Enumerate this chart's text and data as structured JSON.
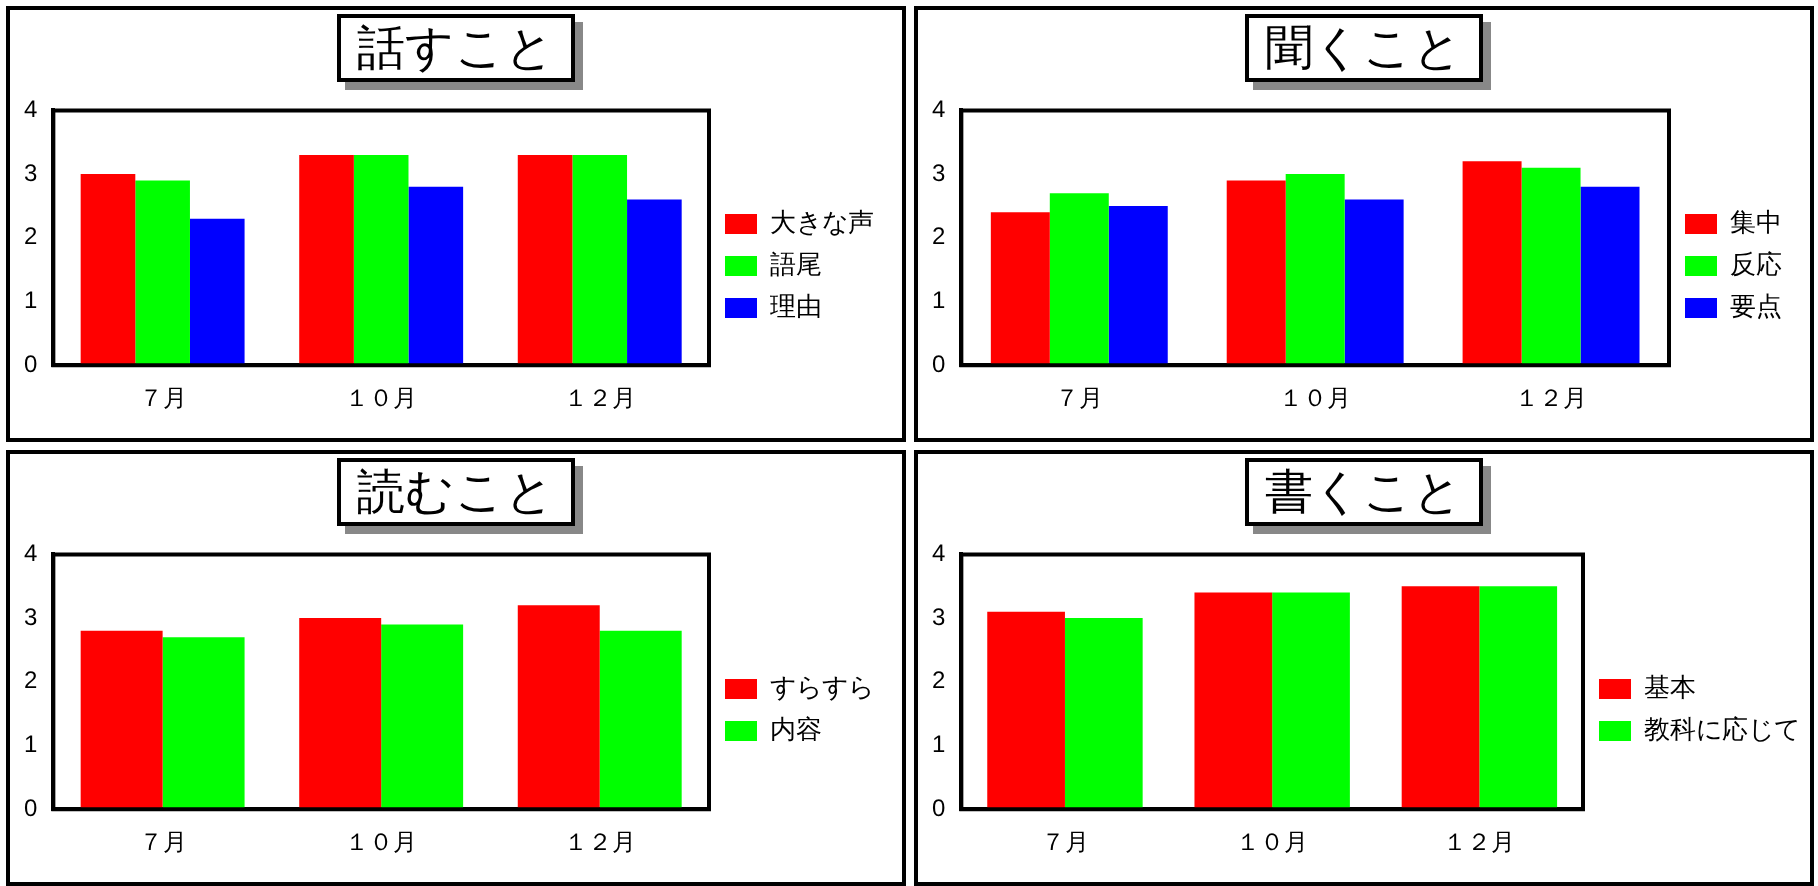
{
  "chart_data": [
    {
      "type": "bar",
      "title": "話すこと",
      "categories": [
        "７月",
        "１０月",
        "１２月"
      ],
      "ylim": [
        0,
        4
      ],
      "yticks": [
        0,
        1,
        2,
        3,
        4
      ],
      "grid": false,
      "legend": "right",
      "series": [
        {
          "name": "大きな声",
          "color": "#ff0000",
          "values": [
            3.0,
            3.3,
            3.3
          ]
        },
        {
          "name": "語尾",
          "color": "#00ff00",
          "values": [
            2.9,
            3.3,
            3.3
          ]
        },
        {
          "name": "理由",
          "color": "#0000ff",
          "values": [
            2.3,
            2.8,
            2.6
          ]
        }
      ]
    },
    {
      "type": "bar",
      "title": "聞くこと",
      "categories": [
        "７月",
        "１０月",
        "１２月"
      ],
      "ylim": [
        0,
        4
      ],
      "yticks": [
        0,
        1,
        2,
        3,
        4
      ],
      "grid": false,
      "legend": "right",
      "series": [
        {
          "name": "集中",
          "color": "#ff0000",
          "values": [
            2.4,
            2.9,
            3.2
          ]
        },
        {
          "name": "反応",
          "color": "#00ff00",
          "values": [
            2.7,
            3.0,
            3.1
          ]
        },
        {
          "name": "要点",
          "color": "#0000ff",
          "values": [
            2.5,
            2.6,
            2.8
          ]
        }
      ]
    },
    {
      "type": "bar",
      "title": "読むこと",
      "categories": [
        "７月",
        "１０月",
        "１２月"
      ],
      "ylim": [
        0,
        4
      ],
      "yticks": [
        0,
        1,
        2,
        3,
        4
      ],
      "grid": false,
      "legend": "right",
      "series": [
        {
          "name": "すらすら",
          "color": "#ff0000",
          "values": [
            2.8,
            3.0,
            3.2
          ]
        },
        {
          "name": "内容",
          "color": "#00ff00",
          "values": [
            2.7,
            2.9,
            2.8
          ]
        }
      ]
    },
    {
      "type": "bar",
      "title": "書くこと",
      "categories": [
        "７月",
        "１０月",
        "１２月"
      ],
      "ylim": [
        0,
        4
      ],
      "yticks": [
        0,
        1,
        2,
        3,
        4
      ],
      "grid": false,
      "legend": "right",
      "series": [
        {
          "name": "基本",
          "color": "#ff0000",
          "values": [
            3.1,
            3.4,
            3.5
          ]
        },
        {
          "name": "教科に応じて",
          "color": "#00ff00",
          "values": [
            3.0,
            3.4,
            3.5
          ]
        }
      ]
    }
  ]
}
